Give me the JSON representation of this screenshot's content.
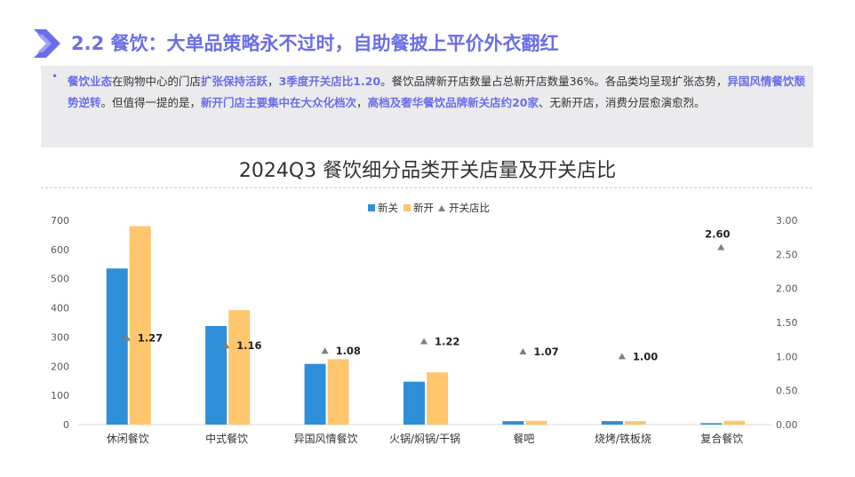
{
  "header": {
    "title": "2.2 餐饮：大单品策略永不过时，自助餐披上平价外衣翻红"
  },
  "summary": {
    "bullet": "•",
    "parts": [
      {
        "text": "餐饮业态",
        "hl": true
      },
      {
        "text": "在购物中心的门店",
        "hl": false
      },
      {
        "text": "扩张保持活跃",
        "hl": true
      },
      {
        "text": "，",
        "hl": false
      },
      {
        "text": "3季度开关店比1.20",
        "hl": true
      },
      {
        "text": "。餐饮品牌新开店数量占总新开店数量36%。各品类均呈现扩张态势，",
        "hl": false
      },
      {
        "text": "异国风情餐饮颓势逆转",
        "hl": true
      },
      {
        "text": "。但值得一提的是，",
        "hl": false
      },
      {
        "text": "新开门店主要集中在大众化档次",
        "hl": true
      },
      {
        "text": "，",
        "hl": false
      },
      {
        "text": "高档及奢华餐饮品牌新关店约20家",
        "hl": true
      },
      {
        "text": "、无新开店，消费分层愈演愈烈。",
        "hl": false
      }
    ]
  },
  "chart_data": {
    "type": "bar",
    "title": "2024Q3 餐饮细分品类开关店量及开关店比",
    "categories": [
      "休闲餐饮",
      "中式餐饮",
      "异国风情餐饮",
      "火锅/焖锅/干锅",
      "餐吧",
      "烧烤/铁板烧",
      "复合餐饮"
    ],
    "series": [
      {
        "name": "新关",
        "kind": "bar",
        "axis": "left",
        "color": "#2e8fd8",
        "values": [
          535,
          338,
          208,
          147,
          12,
          12,
          5
        ]
      },
      {
        "name": "新开",
        "kind": "bar",
        "axis": "left",
        "color": "#ffc66d",
        "values": [
          680,
          392,
          224,
          179,
          13,
          12,
          13
        ]
      },
      {
        "name": "开关店比",
        "kind": "marker",
        "axis": "right",
        "color": "#7f7f7f",
        "values": [
          1.27,
          1.16,
          1.08,
          1.22,
          1.07,
          1.0,
          2.6
        ]
      }
    ],
    "data_labels": [
      "1.27",
      "1.16",
      "1.08",
      "1.22",
      "1.07",
      "1.00",
      "2.60"
    ],
    "ylim": [
      0,
      700
    ],
    "y_ticks": [
      "0",
      "100",
      "200",
      "300",
      "400",
      "500",
      "600",
      "700"
    ],
    "y2lim": [
      0,
      3
    ],
    "y2_ticks": [
      "0.00",
      "0.50",
      "1.00",
      "1.50",
      "2.00",
      "2.50",
      "3.00"
    ],
    "legend": "top-center",
    "grid": false
  }
}
